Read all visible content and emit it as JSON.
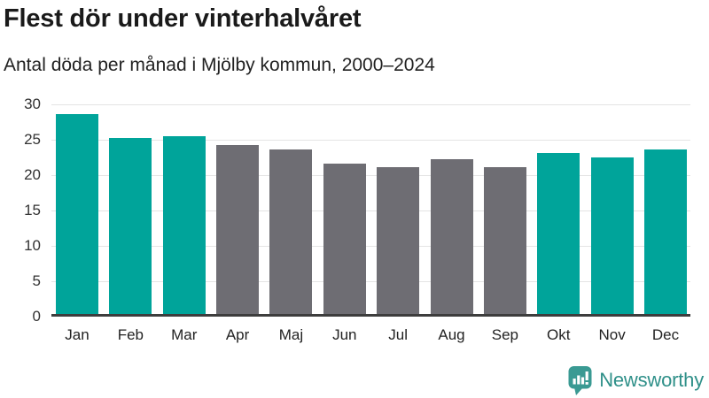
{
  "title": "Flest dör under vinterhalvåret",
  "subtitle": "Antal döda per månad i Mjölby kommun, 2000–2024",
  "chart_data": {
    "type": "bar",
    "title": "Flest dör under vinterhalvåret",
    "subtitle": "Antal döda per månad i Mjölby kommun, 2000–2024",
    "xlabel": "",
    "ylabel": "",
    "categories": [
      "Jan",
      "Feb",
      "Mar",
      "Apr",
      "Maj",
      "Jun",
      "Jul",
      "Aug",
      "Sep",
      "Okt",
      "Nov",
      "Dec"
    ],
    "values": [
      28.2,
      24.9,
      25.1,
      23.9,
      23.3,
      21.3,
      20.7,
      21.9,
      20.8,
      22.7,
      22.1,
      23.2
    ],
    "highlighted": [
      true,
      true,
      true,
      false,
      false,
      false,
      false,
      false,
      false,
      true,
      true,
      true
    ],
    "ylim": [
      0,
      30
    ],
    "yticks": [
      0,
      5,
      10,
      15,
      20,
      25,
      30
    ],
    "grid": true,
    "legend": "none",
    "colors": {
      "highlight": "#00a49a",
      "default": "#6e6d73",
      "gridline": "#e4e4e4",
      "axis_line": "#3d3d3d",
      "tick_text": "#333333"
    }
  },
  "footer": {
    "brand": "Newsworthy",
    "brand_color": "#2f9089",
    "icon_color": "#3a9a93",
    "icon": "newsworthy-chart-bubble-icon"
  }
}
